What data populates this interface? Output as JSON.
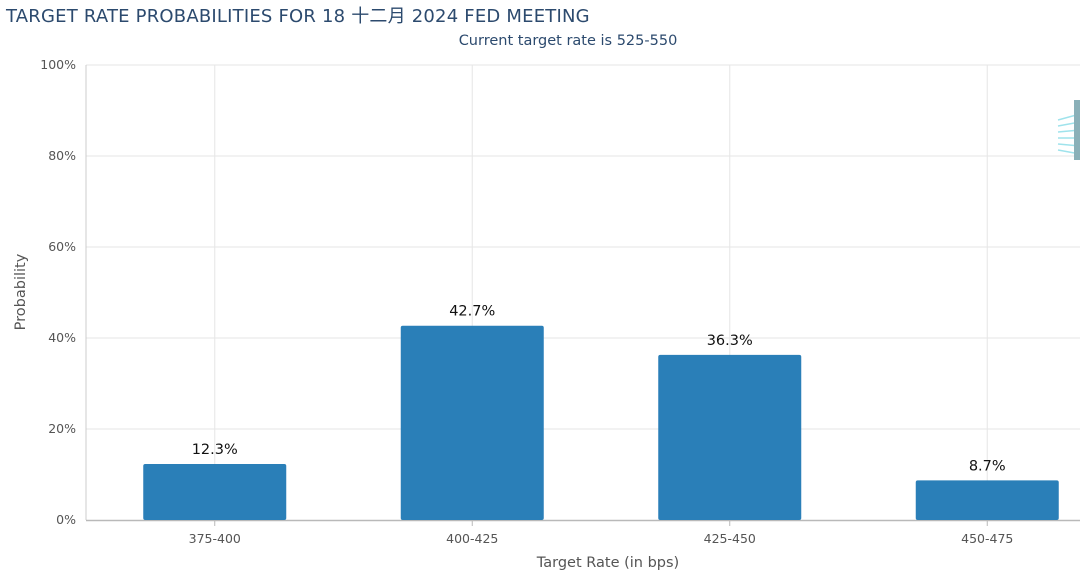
{
  "title": "TARGET RATE PROBABILITIES FOR 18 十二月 2024 FED MEETING",
  "subtitle": "Current target rate is 525-550",
  "chart_data": {
    "type": "bar",
    "title": "TARGET RATE PROBABILITIES FOR 18 十二月 2024 FED MEETING",
    "subtitle": "Current target rate is 525-550",
    "xlabel": "Target Rate (in bps)",
    "ylabel": "Probability",
    "categories": [
      "375-400",
      "400-425",
      "425-450",
      "450-475"
    ],
    "values": [
      12.3,
      42.7,
      36.3,
      8.7
    ],
    "data_labels": [
      "12.3%",
      "42.7%",
      "36.3%",
      "8.7%"
    ],
    "ylim": [
      0,
      100
    ],
    "yticks": [
      0,
      20,
      40,
      60,
      80,
      100
    ],
    "ytick_labels": [
      "0%",
      "20%",
      "40%",
      "60%",
      "80%",
      "100%"
    ],
    "grid": true,
    "bar_color": "#2a7fb8"
  }
}
